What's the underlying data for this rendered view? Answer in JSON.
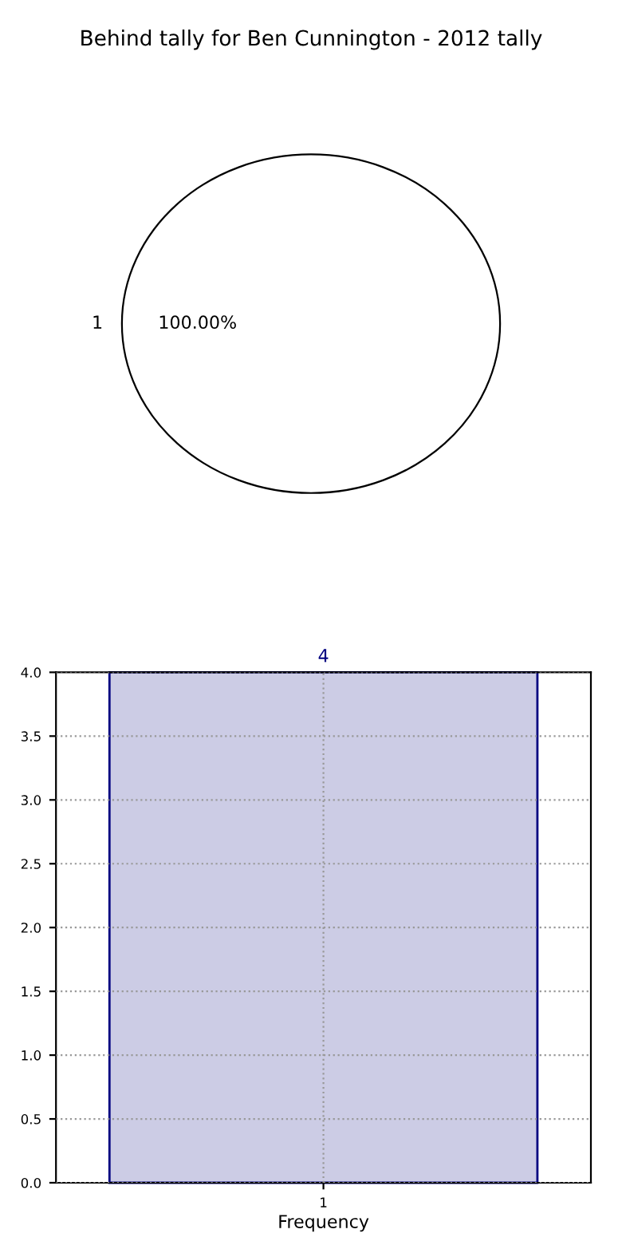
{
  "chart_data": [
    {
      "type": "pie",
      "title": "Behind tally for Ben Cunnington - 2012 tally",
      "categories": [
        "1"
      ],
      "values": [
        100
      ],
      "value_labels": [
        "100.00%"
      ],
      "colors": [
        "#ffffff"
      ]
    },
    {
      "type": "bar",
      "categories": [
        "1"
      ],
      "values": [
        4
      ],
      "color": "#ccccE5",
      "xlabel": "Frequency",
      "data_labels": true,
      "grid": true,
      "ylim": [
        0,
        4
      ],
      "yticks": [
        {
          "value": 0,
          "label": "0.0"
        },
        0.5,
        {
          "value": 1,
          "label": "1.0"
        },
        1.5,
        {
          "value": 2,
          "label": "2.0"
        },
        2.5,
        {
          "value": 3,
          "label": "3.0"
        },
        3.5,
        {
          "value": 4,
          "label": "4.0"
        }
      ]
    }
  ]
}
